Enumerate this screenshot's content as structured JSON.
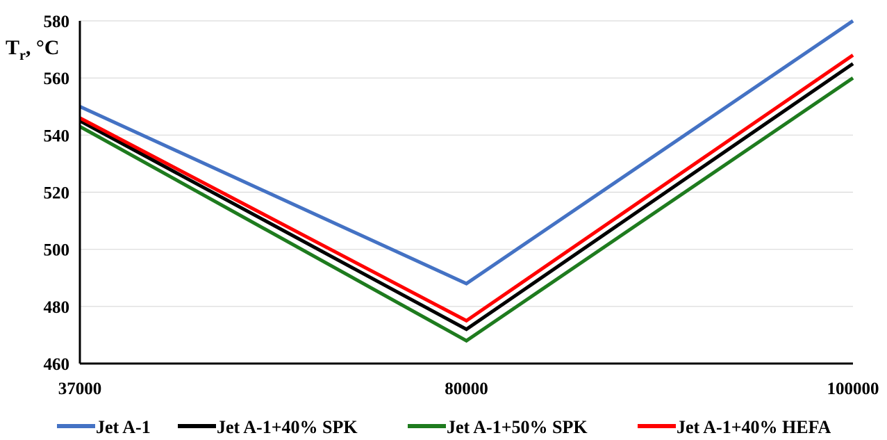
{
  "chart_data": {
    "type": "line",
    "title": "",
    "xlabel": "",
    "ylabel": "T",
    "ylabel_sub": "r",
    "ylabel_unit": ", °C",
    "x": [
      "37000",
      "80000",
      "100000"
    ],
    "ylim": [
      460,
      580
    ],
    "yticks": [
      "460",
      "480",
      "500",
      "520",
      "540",
      "560",
      "580"
    ],
    "grid": "horizontal",
    "legend_position": "bottom",
    "series": [
      {
        "name": "Jet A-1",
        "color": "#4472C4",
        "values": [
          550,
          488,
          580
        ]
      },
      {
        "name": "Jet A-1+40% SPK",
        "color": "#000000",
        "values": [
          545,
          472,
          565
        ]
      },
      {
        "name": "Jet A-1+50% SPK",
        "color": "#1E7B1E",
        "values": [
          543,
          468,
          560
        ]
      },
      {
        "name": "Jet A-1+40% HEFA",
        "color": "#FF0000",
        "values": [
          546,
          475,
          568
        ]
      }
    ]
  }
}
